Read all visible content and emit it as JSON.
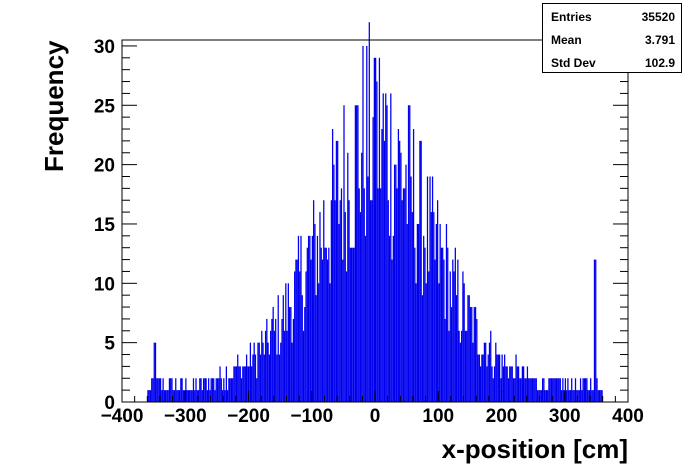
{
  "chart_data": {
    "type": "histogram",
    "title": "",
    "xlabel": "x-position [cm]",
    "ylabel": "Frequency",
    "xlim": [
      -400,
      400
    ],
    "ylim": [
      0,
      30.5
    ],
    "x_ticks": [
      -400,
      -300,
      -200,
      -100,
      0,
      100,
      200,
      300,
      400
    ],
    "x_tick_labels": [
      "−400",
      "−300",
      "−200",
      "−100",
      "0",
      "100",
      "200",
      "300",
      "400"
    ],
    "y_ticks": [
      0,
      5,
      10,
      15,
      20,
      25,
      30
    ],
    "y_tick_labels": [
      "0",
      "5",
      "10",
      "15",
      "20",
      "25",
      "30"
    ],
    "color": "#0000ee",
    "bin_width_units": 2,
    "notable_features": {
      "spike_at_zero": 29,
      "spike_near_348": 12,
      "isolated_left_peak_near_-348": 5,
      "data_range": [
        -360,
        360
      ]
    },
    "stats": {
      "entries_label": "Entries",
      "entries_value": "35520",
      "mean_label": "Mean",
      "mean_value": "3.791",
      "stddev_label": "Std Dev",
      "stddev_value": "102.9"
    }
  }
}
